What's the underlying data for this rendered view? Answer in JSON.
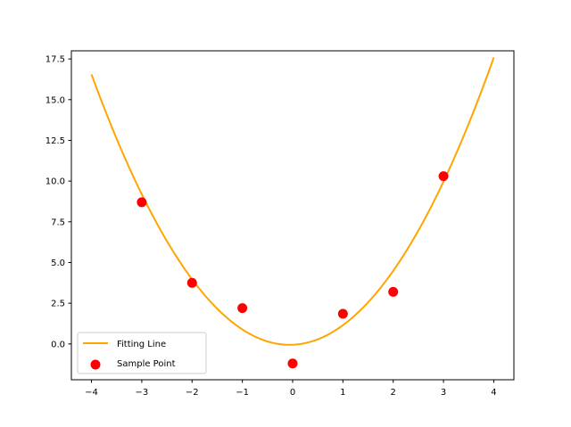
{
  "chart_data": {
    "type": "scatter",
    "title": "",
    "xlabel": "",
    "ylabel": "",
    "xlim": [
      -4.4,
      4.4
    ],
    "ylim": [
      -2.2,
      18.0
    ],
    "x_ticks": [
      -4,
      -3,
      -2,
      -1,
      0,
      1,
      2,
      3,
      4
    ],
    "x_tick_labels": [
      "−4",
      "−3",
      "−2",
      "−1",
      "0",
      "1",
      "2",
      "3",
      "4"
    ],
    "y_ticks": [
      0.0,
      2.5,
      5.0,
      7.5,
      10.0,
      12.5,
      15.0,
      17.5
    ],
    "y_tick_labels": [
      "0.0",
      "2.5",
      "5.0",
      "7.5",
      "10.0",
      "12.5",
      "15.0",
      "17.5"
    ],
    "grid": false,
    "legend_position": "lower-left",
    "series": [
      {
        "name": "Fitting Line",
        "kind": "line",
        "color": "#FFA500",
        "fit": {
          "a": 1.07,
          "b": 0.13,
          "c": -0.05
        },
        "x_range": [
          -4,
          4
        ]
      },
      {
        "name": "Sample Point",
        "kind": "scatter",
        "color": "#FF0000",
        "x": [
          -3,
          -2,
          -1,
          0,
          1,
          2,
          3
        ],
        "y": [
          8.7,
          3.75,
          2.2,
          -1.2,
          1.85,
          3.2,
          10.3
        ]
      }
    ]
  }
}
